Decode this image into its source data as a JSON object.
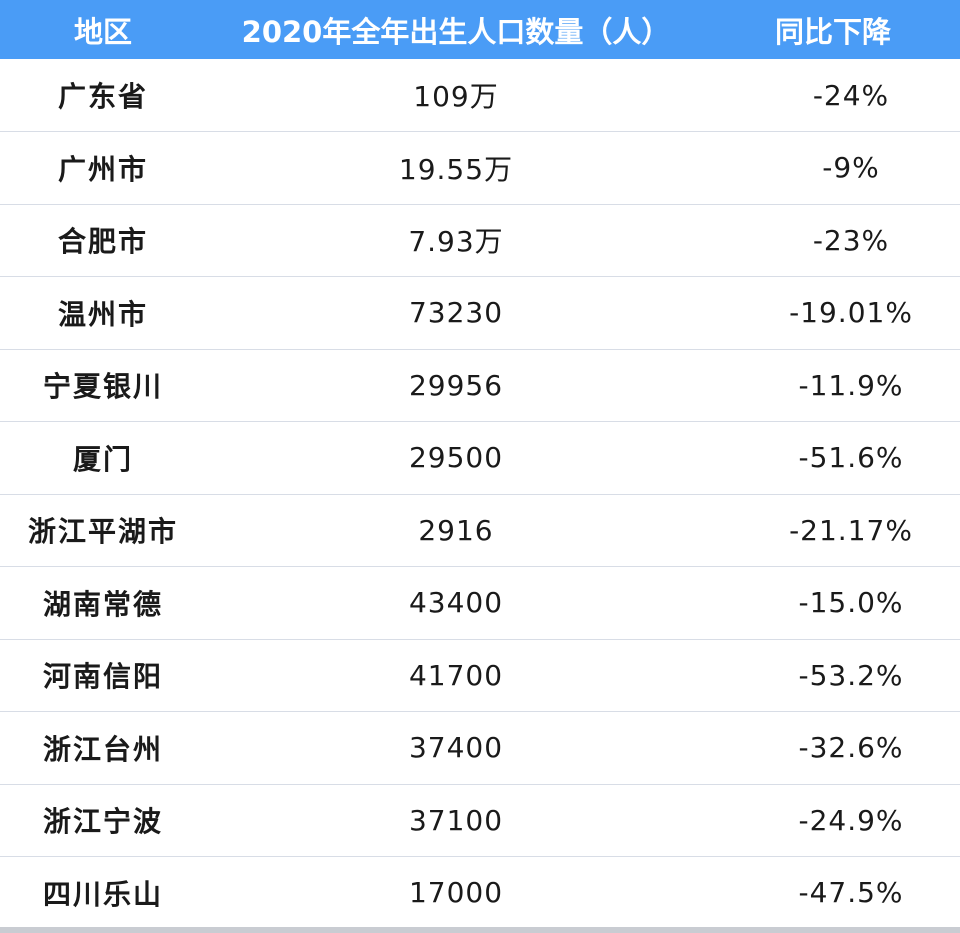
{
  "table": {
    "headers": [
      "地区",
      "2020年全年出生人口数量（人）",
      "同比下降"
    ],
    "rows": [
      {
        "region": "广东省",
        "births": "109万",
        "change": "-24%"
      },
      {
        "region": "广州市",
        "births": "19.55万",
        "change": "-9%"
      },
      {
        "region": "合肥市",
        "births": "7.93万",
        "change": "-23%"
      },
      {
        "region": "温州市",
        "births": "73230",
        "change": "-19.01%"
      },
      {
        "region": "宁夏银川",
        "births": "29956",
        "change": "-11.9%"
      },
      {
        "region": "厦门",
        "births": "29500",
        "change": "-51.6%"
      },
      {
        "region": "浙江平湖市",
        "births": "2916",
        "change": "-21.17%"
      },
      {
        "region": "湖南常德",
        "births": "43400",
        "change": "-15.0%"
      },
      {
        "region": "河南信阳",
        "births": "41700",
        "change": "-53.2%"
      },
      {
        "region": "浙江台州",
        "births": "37400",
        "change": "-32.6%"
      },
      {
        "region": "浙江宁波",
        "births": "37100",
        "change": "-24.9%"
      },
      {
        "region": "四川乐山",
        "births": "17000",
        "change": "-47.5%"
      }
    ]
  },
  "colors": {
    "header_bg": "#4a9cf6",
    "header_text": "#ffffff",
    "row_divider": "#d8dde6"
  }
}
